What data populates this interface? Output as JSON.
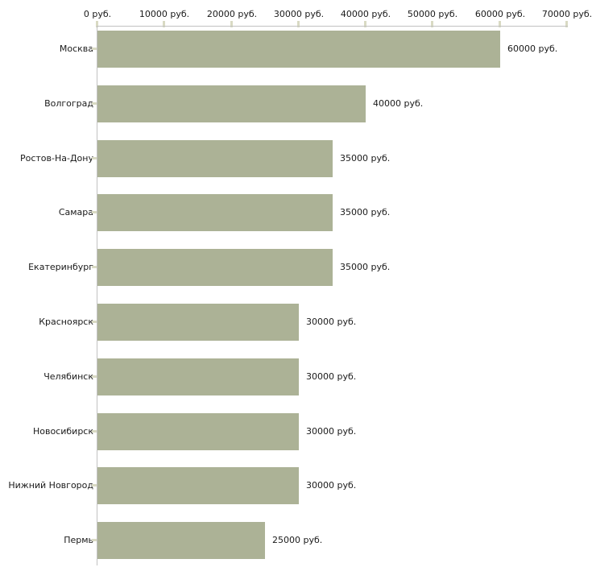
{
  "chart_data": {
    "type": "bar",
    "orientation": "horizontal",
    "title": "",
    "xlabel": "",
    "ylabel": "",
    "unit": "руб.",
    "categories": [
      "Москва",
      "Волгоград",
      "Ростов-На-Дону",
      "Самара",
      "Екатеринбург",
      "Красноярск",
      "Челябинск",
      "Новосибирск",
      "Нижний Новгород",
      "Пермь"
    ],
    "values": [
      60000,
      40000,
      35000,
      35000,
      35000,
      30000,
      30000,
      30000,
      30000,
      25000
    ],
    "value_labels": [
      "60000 руб.",
      "40000 руб.",
      "35000 руб.",
      "35000 руб.",
      "35000 руб.",
      "30000 руб.",
      "30000 руб.",
      "30000 руб.",
      "30000 руб.",
      "25000 руб."
    ],
    "x_tick_labels": [
      "0 руб.",
      "10000 руб.",
      "20000 руб.",
      "30000 руб.",
      "40000 руб.",
      "50000 руб.",
      "60000 руб.",
      "70000 руб."
    ],
    "xlim": [
      0,
      70000
    ],
    "x_tick_step": 10000,
    "axis_position": "top",
    "legend": "none",
    "grid": "off",
    "colors": {
      "bar": "#acb296",
      "axis_line": "#c2c2c2",
      "tick_mark": "#d9dac3",
      "text": "#1a1a1a",
      "background": "#ffffff"
    }
  }
}
